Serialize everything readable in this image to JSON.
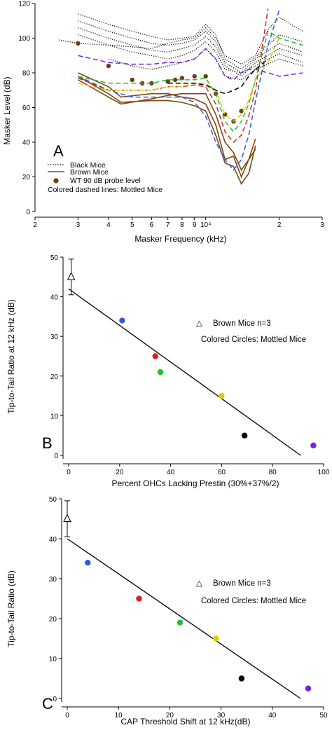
{
  "chart_data": [
    {
      "id": "A",
      "type": "line",
      "panel_label": "A",
      "xlabel": "Masker Frequency (kHz)",
      "ylabel": "Masker Level (dB)",
      "x_scale": "log",
      "xlim": [
        2000,
        30000
      ],
      "ylim": [
        0,
        120
      ],
      "x_tick_labels": [
        {
          "value": 2000,
          "label": "2"
        },
        {
          "value": 3000,
          "label": "3"
        },
        {
          "value": 4000,
          "label": "4"
        },
        {
          "value": 5000,
          "label": "5"
        },
        {
          "value": 6000,
          "label": "6"
        },
        {
          "value": 7000,
          "label": "7"
        },
        {
          "value": 8000,
          "label": "8"
        },
        {
          "value": 9000,
          "label": "9"
        },
        {
          "value": 10000,
          "label": "10⁴"
        },
        {
          "value": 20000,
          "label": "2"
        },
        {
          "value": 30000,
          "label": "3"
        }
      ],
      "y_ticks": [
        0,
        20,
        40,
        60,
        80,
        100,
        120
      ],
      "legend": [
        {
          "label": "Black Mice",
          "style": "dotted",
          "color": "#000000"
        },
        {
          "label": "Brown Mice",
          "style": "solid",
          "color": "#7a4a12"
        },
        {
          "label": "WT 90 dB probe level",
          "style": "dot",
          "color": "#6b3f12"
        },
        {
          "label": "Colored dashed lines: Mottled Mice",
          "style": "text",
          "color": "#000000"
        }
      ],
      "series": [
        {
          "group": "black",
          "color": "#000000",
          "x": [
            2500,
            3000,
            4000,
            5000,
            6000,
            7000,
            8000,
            9000,
            10000,
            11000,
            12000,
            14000,
            16000,
            18000,
            20000,
            25000
          ],
          "y": [
            99,
            97,
            96,
            95,
            94,
            97,
            99,
            100,
            106,
            100,
            90,
            85,
            90,
            105,
            112,
            104
          ]
        },
        {
          "group": "black",
          "color": "#000000",
          "x": [
            3000,
            4000,
            5000,
            6000,
            7000,
            8000,
            9000,
            10000,
            11000,
            12000,
            14000,
            16000,
            20000,
            25000
          ],
          "y": [
            114,
            108,
            104,
            101,
            99,
            100,
            101,
            108,
            102,
            88,
            82,
            89,
            102,
            98
          ]
        },
        {
          "group": "black",
          "color": "#000000",
          "x": [
            3000,
            4000,
            5000,
            6000,
            7000,
            8000,
            9000,
            10000,
            11000,
            12000,
            14000,
            16000,
            20000,
            25000
          ],
          "y": [
            110,
            104,
            100,
            97,
            96,
            97,
            99,
            104,
            98,
            86,
            80,
            88,
            97,
            92
          ]
        },
        {
          "group": "black",
          "color": "#000000",
          "x": [
            3000,
            4000,
            5000,
            6000,
            7000,
            8000,
            9000,
            10000,
            11000,
            12000,
            14000,
            16000,
            20000,
            25000
          ],
          "y": [
            106,
            100,
            96,
            93,
            92,
            94,
            96,
            101,
            95,
            84,
            78,
            86,
            94,
            90
          ]
        },
        {
          "group": "black",
          "color": "#000000",
          "x": [
            3000,
            4000,
            5000,
            6000,
            7000,
            8000,
            9000,
            10000,
            11000,
            12000,
            14000,
            16000,
            20000,
            25000
          ],
          "y": [
            102,
            96,
            92,
            90,
            88,
            90,
            93,
            98,
            92,
            82,
            80,
            84,
            91,
            86
          ]
        },
        {
          "group": "black",
          "color": "#000000",
          "x": [
            4000,
            5000,
            6000,
            7000,
            8000,
            9000,
            10000,
            11000,
            12000,
            14000,
            16000,
            20000,
            25000
          ],
          "y": [
            88,
            84,
            82,
            84,
            86,
            88,
            94,
            88,
            78,
            76,
            82,
            88,
            84
          ]
        },
        {
          "group": "brown",
          "color": "#7a4a12",
          "x": [
            3000,
            4000,
            4500,
            6000,
            7000,
            8000,
            9000,
            10000,
            11000,
            12000,
            13000,
            14000,
            15000,
            16000
          ],
          "y": [
            80,
            72,
            66,
            68,
            68,
            66,
            65,
            62,
            50,
            30,
            32,
            20,
            30,
            42
          ]
        },
        {
          "group": "brown",
          "color": "#7a4a12",
          "x": [
            3000,
            4000,
            4500,
            6000,
            7000,
            8000,
            9000,
            10000,
            11000,
            12000,
            13000,
            14000,
            15000,
            16000
          ],
          "y": [
            78,
            68,
            63,
            64,
            64,
            63,
            61,
            58,
            44,
            28,
            26,
            16,
            22,
            38
          ]
        },
        {
          "group": "brown",
          "color": "#7a4a12",
          "x": [
            3000,
            4000,
            4500,
            6000,
            7000,
            8000,
            9000,
            10000,
            11000,
            12000,
            13000,
            14000,
            15000,
            16000
          ],
          "y": [
            76,
            66,
            62,
            65,
            67,
            68,
            68,
            68,
            56,
            40,
            34,
            24,
            30,
            36
          ]
        },
        {
          "group": "wt",
          "color": "#6b3f12",
          "x": [
            3000,
            4000,
            5000,
            5500,
            6000,
            7000,
            7500,
            8000,
            9000,
            10000,
            11000,
            12000,
            13000,
            14000
          ],
          "y": [
            97,
            84,
            76,
            74,
            74,
            75,
            76,
            77,
            78,
            78,
            68,
            56,
            52,
            58
          ]
        },
        {
          "group": "mottled",
          "color": "#2b5ce0",
          "x": [
            3000,
            4000,
            5000,
            6000,
            7000,
            8000,
            9000,
            10000,
            11000,
            12000,
            13000,
            14000,
            15000,
            16000,
            18000,
            20000
          ],
          "y": [
            78,
            70,
            66,
            66,
            66,
            66,
            63,
            55,
            40,
            30,
            24,
            30,
            44,
            64,
            96,
            116
          ]
        },
        {
          "group": "mottled",
          "color": "#e02020",
          "x": [
            3000,
            4000,
            5000,
            6000,
            7000,
            8000,
            9000,
            10000,
            11000,
            12000,
            13000,
            14000,
            15000,
            16000,
            18000
          ],
          "y": [
            77,
            70,
            70,
            70,
            72,
            72,
            73,
            72,
            62,
            46,
            40,
            44,
            55,
            70,
            117
          ]
        },
        {
          "group": "mottled",
          "color": "#22c030",
          "x": [
            3000,
            4000,
            5000,
            6000,
            7000,
            8000,
            9000,
            10000,
            11000,
            12000,
            13000,
            14000,
            15000,
            16000,
            18000,
            20000,
            25000
          ],
          "y": [
            78,
            74,
            74,
            74,
            76,
            76,
            76,
            77,
            68,
            52,
            46,
            52,
            62,
            76,
            104,
            100,
            96
          ]
        },
        {
          "group": "mottled",
          "color": "#d4d000",
          "x": [
            3000,
            4000,
            5000,
            6000,
            7000,
            8000,
            9000,
            10000,
            11000,
            12000,
            13000,
            14000,
            15000,
            16000,
            18000,
            20000
          ],
          "y": [
            74,
            70,
            70,
            70,
            72,
            72,
            74,
            74,
            70,
            56,
            52,
            56,
            64,
            76,
            86,
            100
          ]
        },
        {
          "group": "mottled",
          "color": "#000000",
          "x": [
            7000,
            8000,
            9000,
            10000,
            11000,
            12000,
            13000,
            14000,
            15000,
            16000,
            18000
          ],
          "y": [
            74,
            74,
            74,
            73,
            70,
            68,
            70,
            72,
            78,
            82,
            88
          ]
        },
        {
          "group": "mottled",
          "color": "#7a20e0",
          "x": [
            3000,
            4000,
            5000,
            6000,
            7000,
            8000,
            9000,
            10000,
            11000,
            12000,
            13000,
            14000,
            15000,
            16000,
            18000,
            20000,
            25000
          ],
          "y": [
            90,
            86,
            85,
            85,
            86,
            86,
            88,
            94,
            88,
            78,
            76,
            80,
            82,
            82,
            80,
            78,
            80
          ]
        }
      ]
    },
    {
      "id": "B",
      "type": "scatter",
      "panel_label": "B",
      "xlabel": "Percent OHCs Lacking Prestin (30%+37%/2)",
      "ylabel": "Tip-to-Tail Ratio at 12 kHz (dB)",
      "xlim": [
        0,
        100
      ],
      "ylim": [
        0,
        50
      ],
      "x_ticks": [
        0,
        20,
        40,
        60,
        80,
        100
      ],
      "y_ticks": [
        0,
        10,
        20,
        30,
        40,
        50
      ],
      "legend": [
        {
          "symbol": "△",
          "label": "Brown Mice n=3"
        },
        {
          "symbol": "",
          "label": "Colored Circles:  Mottled Mice"
        }
      ],
      "brown_point": {
        "x": 1,
        "y": 45,
        "yerr_low": 40.5,
        "yerr_high": 49.5
      },
      "points": [
        {
          "x": 21,
          "y": 34,
          "color": "#2b5ce0"
        },
        {
          "x": 34,
          "y": 25,
          "color": "#e02020"
        },
        {
          "x": 36,
          "y": 21,
          "color": "#22c030"
        },
        {
          "x": 60,
          "y": 15,
          "color": "#d4d000"
        },
        {
          "x": 69,
          "y": 5,
          "color": "#000000"
        },
        {
          "x": 96,
          "y": 2.5,
          "color": "#7a20e0"
        }
      ],
      "fit_line": {
        "x": [
          0,
          91
        ],
        "y": [
          42,
          0
        ]
      }
    },
    {
      "id": "C",
      "type": "scatter",
      "panel_label": "C",
      "xlabel": "CAP Threshold Shift at 12 kHz(dB)",
      "ylabel": "Tip-to-Tail Ratio (dB)",
      "xlim": [
        0,
        50
      ],
      "ylim": [
        0,
        50
      ],
      "x_ticks": [
        0,
        10,
        20,
        30,
        40,
        50
      ],
      "y_ticks": [
        0,
        10,
        20,
        30,
        40,
        50
      ],
      "legend": [
        {
          "symbol": "△",
          "label": "Brown Mice n=3"
        },
        {
          "symbol": "",
          "label": "Colored Circles:  Mottled Mice"
        }
      ],
      "brown_point": {
        "x": 0,
        "y": 45,
        "yerr_low": 40.5,
        "yerr_high": 49.5
      },
      "points": [
        {
          "x": 4,
          "y": 34,
          "color": "#2b5ce0"
        },
        {
          "x": 14,
          "y": 25,
          "color": "#e02020"
        },
        {
          "x": 22,
          "y": 19,
          "color": "#22c030"
        },
        {
          "x": 29,
          "y": 15,
          "color": "#d4d000"
        },
        {
          "x": 34,
          "y": 5,
          "color": "#000000"
        },
        {
          "x": 47,
          "y": 2.5,
          "color": "#7a20e0"
        }
      ],
      "fit_line": {
        "x": [
          0,
          45.5
        ],
        "y": [
          40,
          0
        ]
      }
    }
  ]
}
